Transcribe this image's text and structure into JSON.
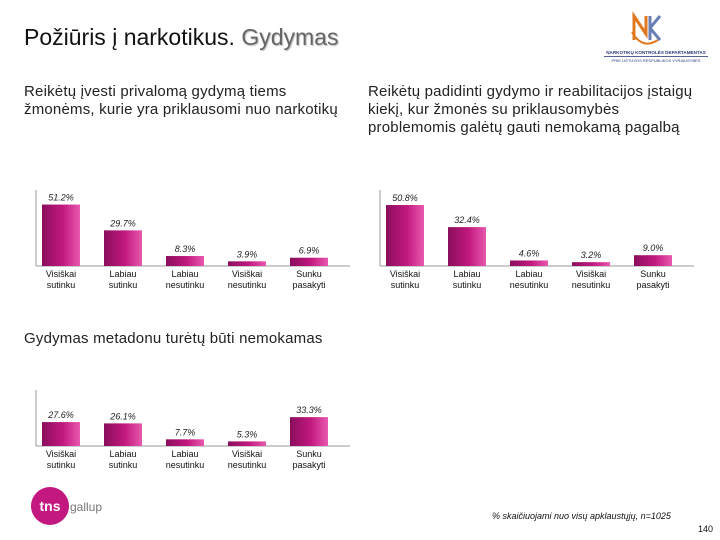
{
  "header": {
    "title_main": "Požiūris į narkotikus.",
    "title_sub": "Gydymas",
    "logo_text_line1": "NARKOTIKŲ KONTROLĖS DEPARTAMENTAS",
    "logo_text_line2": "PRIE LIETUVOS RESPUBLIKOS VYRIAUSYBĖS"
  },
  "colors": {
    "bar_dark": "#8a0e5c",
    "bar_mid": "#c2187f",
    "bar_light": "#e85aae",
    "axis": "#999999"
  },
  "footer": {
    "brand_tns": "tns",
    "brand_gallup": "gallup",
    "note": "% skaičiuojami nuo visų apklaustųjų, n=1025",
    "page_number": "140"
  },
  "chart_data": [
    {
      "type": "bar",
      "title": "Reikėtų įvesti privalomą gydymą tiems žmonėms, kurie yra priklausomi nuo narkotikų",
      "categories": [
        [
          "Visiškai",
          "sutinku"
        ],
        [
          "Labiau",
          "sutinku"
        ],
        [
          "Labiau",
          "nesutinku"
        ],
        [
          "Visiškai",
          "nesutinku"
        ],
        [
          "Sunku",
          "pasakyti"
        ]
      ],
      "values": [
        51.2,
        29.7,
        8.3,
        3.9,
        6.9
      ],
      "value_labels": [
        "51.2%",
        "29.7%",
        "8.3%",
        "3.9%",
        "6.9%"
      ],
      "ylim": [
        0,
        60
      ],
      "grid": false,
      "legend": "none"
    },
    {
      "type": "bar",
      "title": "Reikėtų padidinti gydymo ir reabilitacijos įstaigų kiekį, kur žmonės su priklausomybės problemomis galėtų gauti nemokamą pagalbą",
      "categories": [
        [
          "Visiškai",
          "sutinku"
        ],
        [
          "Labiau",
          "sutinku"
        ],
        [
          "Labiau",
          "nesutinku"
        ],
        [
          "Visiškai",
          "nesutinku"
        ],
        [
          "Sunku",
          "pasakyti"
        ]
      ],
      "values": [
        50.8,
        32.4,
        4.6,
        3.2,
        9.0
      ],
      "value_labels": [
        "50.8%",
        "32.4%",
        "4.6%",
        "3.2%",
        "9.0%"
      ],
      "ylim": [
        0,
        60
      ],
      "grid": false,
      "legend": "none"
    },
    {
      "type": "bar",
      "title": "Gydymas metadonu turėtų būti nemokamas",
      "categories": [
        [
          "Visiškai",
          "sutinku"
        ],
        [
          "Labiau",
          "sutinku"
        ],
        [
          "Labiau",
          "nesutinku"
        ],
        [
          "Visiškai",
          "nesutinku"
        ],
        [
          "Sunku",
          "pasakyti"
        ]
      ],
      "values": [
        27.6,
        26.1,
        7.7,
        5.3,
        33.3
      ],
      "value_labels": [
        "27.6%",
        "26.1%",
        "7.7%",
        "5.3%",
        "33.3%"
      ],
      "ylim": [
        0,
        60
      ],
      "grid": false,
      "legend": "none"
    }
  ]
}
